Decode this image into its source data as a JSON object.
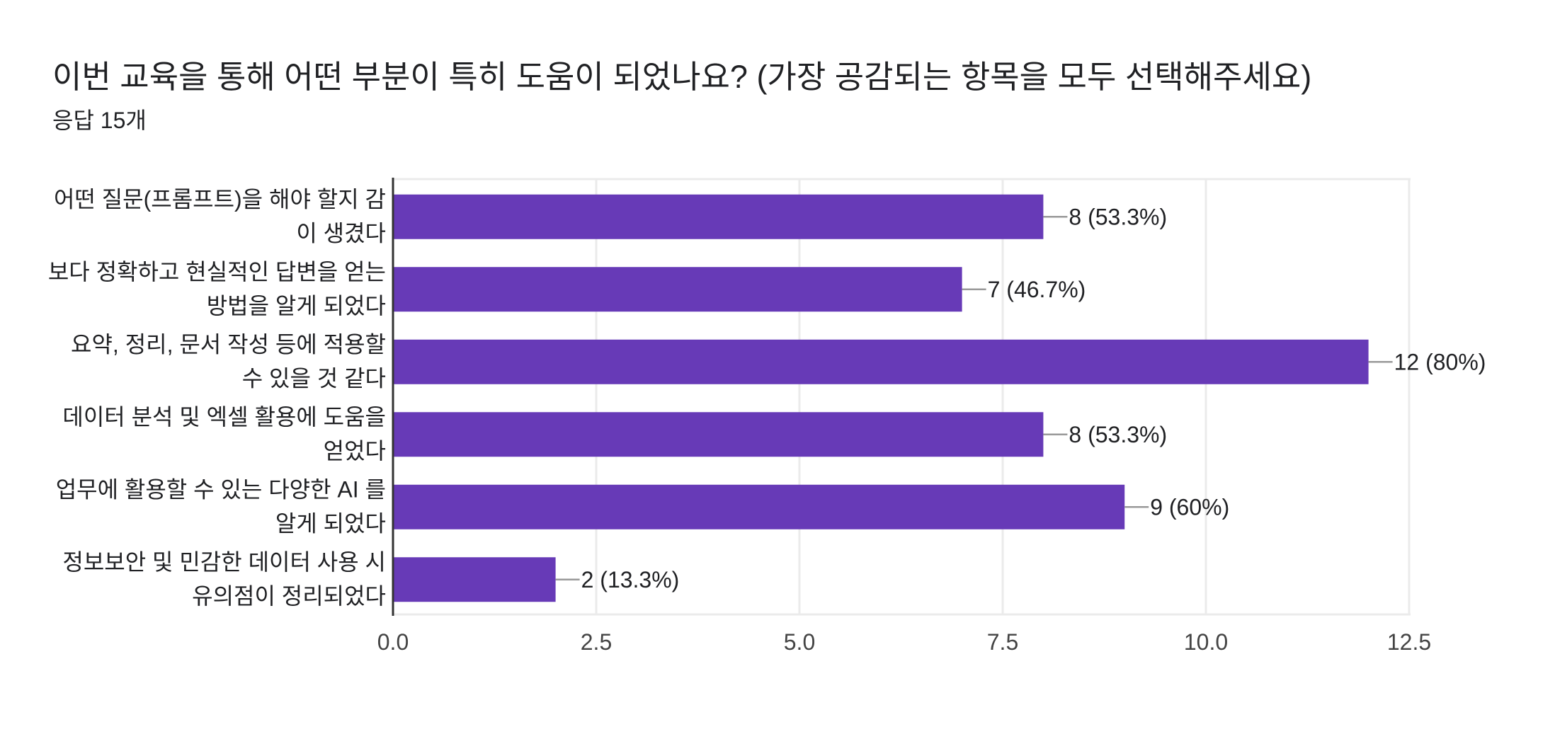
{
  "header": {
    "title": "이번 교육을 통해 어떤 부분이 특히 도움이 되었나요? (가장 공감되는 항목을 모두 선택해주세요)",
    "response_count": "응답 15개"
  },
  "colors": {
    "bar": "#673ab7",
    "grid": "#ebebeb",
    "axis": "#333333",
    "leader": "#999999",
    "text": "#202124",
    "tick": "#444444"
  },
  "chart_data": {
    "type": "bar",
    "orientation": "horizontal",
    "title": "이번 교육을 통해 어떤 부분이 특히 도움이 되었나요? (가장 공감되는 항목을 모두 선택해주세요)",
    "subtitle": "응답 15개",
    "xlabel": "",
    "ylabel": "",
    "xlim": [
      0,
      12.5
    ],
    "x_ticks": [
      "0.0",
      "2.5",
      "5.0",
      "7.5",
      "10.0",
      "12.5"
    ],
    "grid": true,
    "legend": "none",
    "categories": [
      [
        "어떤 질문(프롬프트)을 해야 할지 감",
        "이 생겼다"
      ],
      [
        "보다 정확하고 현실적인 답변을 얻는",
        "방법을 알게 되었다"
      ],
      [
        "요약, 정리, 문서 작성 등에 적용할",
        "수 있을 것 같다"
      ],
      [
        "데이터 분석 및 엑셀 활용에 도움을",
        "얻었다"
      ],
      [
        "업무에 활용할 수 있는 다양한 AI 를",
        "알게 되었다"
      ],
      [
        "정보보안 및 민감한 데이터 사용 시",
        "유의점이 정리되었다"
      ]
    ],
    "values": [
      8,
      7,
      12,
      8,
      9,
      2
    ],
    "data_labels": [
      "8 (53.3%)",
      "7 (46.7%)",
      "12 (80%)",
      "8 (53.3%)",
      "9 (60%)",
      "2 (13.3%)"
    ]
  }
}
